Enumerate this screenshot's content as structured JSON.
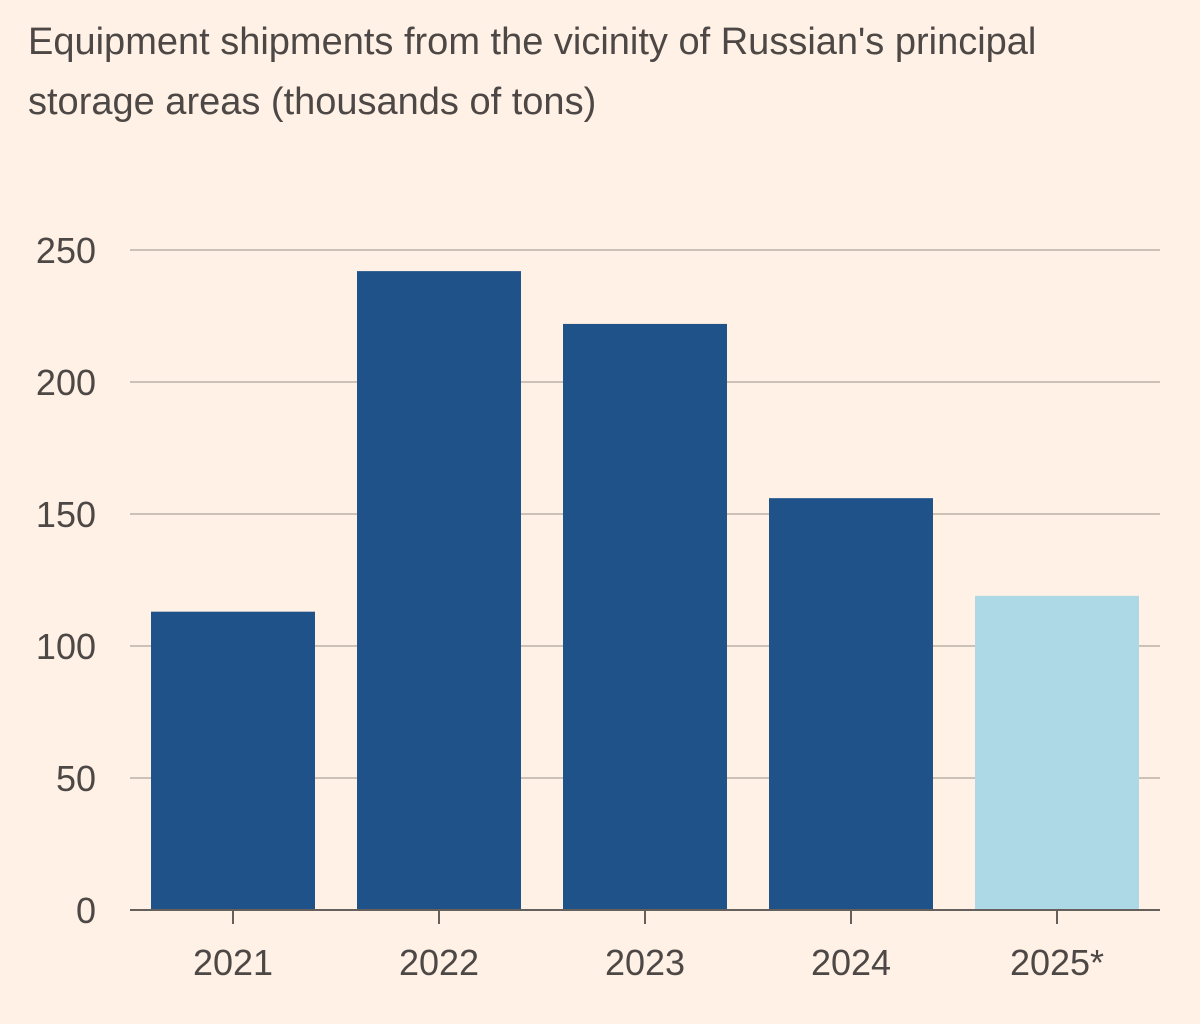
{
  "chart_data": {
    "type": "bar",
    "title": "Equipment shipments from the vicinity of Russian's principal storage areas (thousands of tons)",
    "categories": [
      "2021",
      "2022",
      "2023",
      "2024",
      "2025*"
    ],
    "values": [
      113,
      242,
      222,
      156,
      119
    ],
    "bar_colors": [
      "#1f5289",
      "#1f5289",
      "#1f5289",
      "#1f5289",
      "#add8e6"
    ],
    "ylim": [
      0,
      250
    ],
    "yticks": [
      0,
      50,
      100,
      150,
      200,
      250
    ],
    "xlabel": "",
    "ylabel": "",
    "grid": true,
    "colors": {
      "background": "#fff1e5",
      "gridline": "#ccc1b7",
      "axis": "#66605c",
      "text": "#4d4845"
    }
  }
}
